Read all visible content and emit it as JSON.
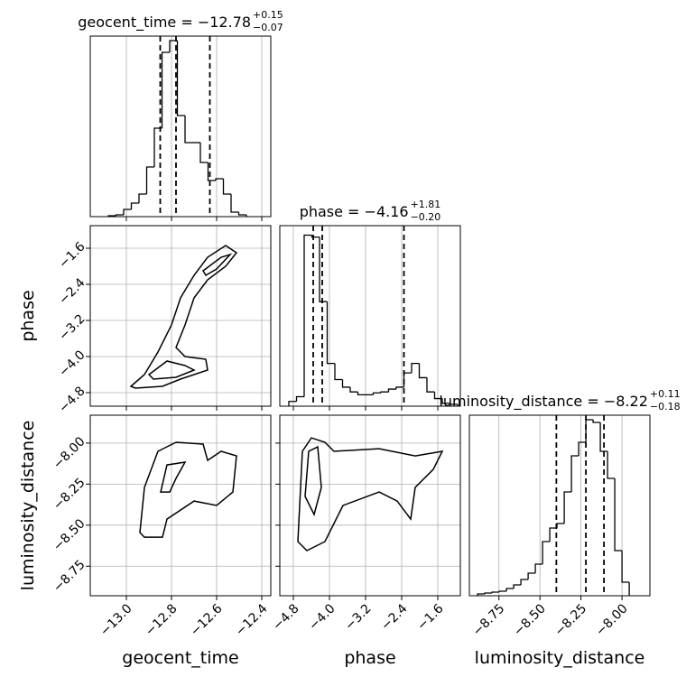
{
  "chart_data": [
    {
      "type": "histogram",
      "title": "geocent_time = −12.78",
      "title_sup": "+0.15",
      "title_sub": "−0.07",
      "bins": [
        -13.08,
        -13.046,
        -13.012,
        -12.978,
        -12.944,
        -12.91,
        -12.876,
        -12.842,
        -12.808,
        -12.774,
        -12.74,
        -12.706,
        -12.672,
        -12.638,
        -12.604,
        -12.57,
        -12.536,
        -12.502,
        -12.468
      ],
      "counts": [
        1,
        2,
        8,
        15,
        25,
        55,
        98,
        182,
        195,
        112,
        82,
        82,
        60,
        40,
        42,
        25,
        5,
        2
      ],
      "quantiles": [
        -12.85,
        -12.78,
        -12.63
      ],
      "xlim": [
        -13.16,
        -12.36
      ],
      "xticks": [
        -13.0,
        -12.8,
        -12.6,
        -12.4
      ],
      "ylim": [
        0,
        200
      ],
      "grid": true,
      "color": "#000000"
    },
    {
      "type": "histogram",
      "title": "phase = −4.16",
      "title_sup": "+1.81",
      "title_sub": "−0.20",
      "bins": [
        -4.9,
        -4.73,
        -4.56,
        -4.39,
        -4.22,
        -4.05,
        -3.88,
        -3.71,
        -3.54,
        -3.37,
        -3.2,
        -3.03,
        -2.86,
        -2.69,
        -2.52,
        -2.35,
        -2.18,
        -2.01,
        -1.84,
        -1.67,
        -1.5,
        -1.33,
        -1.16
      ],
      "counts": [
        5,
        10,
        180,
        178,
        110,
        45,
        28,
        20,
        15,
        12,
        12,
        14,
        15,
        18,
        20,
        35,
        45,
        30,
        15,
        8,
        3,
        2
      ],
      "quantiles": [
        -4.36,
        -4.16,
        -2.35
      ],
      "xlim": [
        -5.1,
        -1.1
      ],
      "xticks": [
        -4.8,
        -4.0,
        -3.2,
        -2.4,
        -1.6
      ],
      "ylim": [
        0,
        190
      ],
      "grid": true,
      "color": "#000000"
    },
    {
      "type": "histogram",
      "title": "luminosity_distance = −8.22",
      "title_sup": "+0.11",
      "title_sub": "−0.18",
      "bins": [
        -8.88,
        -8.836,
        -8.792,
        -8.748,
        -8.704,
        -8.66,
        -8.616,
        -8.572,
        -8.528,
        -8.484,
        -8.44,
        -8.396,
        -8.352,
        -8.308,
        -8.264,
        -8.22,
        -8.176,
        -8.132,
        -8.088,
        -8.044,
        -8.0,
        -7.956
      ],
      "counts": [
        2,
        3,
        4,
        5,
        8,
        12,
        18,
        25,
        35,
        60,
        75,
        80,
        115,
        155,
        170,
        195,
        192,
        160,
        130,
        50,
        15
      ],
      "quantiles": [
        -8.4,
        -8.22,
        -8.11
      ],
      "xlim": [
        -8.93,
        -7.83
      ],
      "xticks": [
        {
          "value": -8.75,
          "label": "−8.75"
        },
        {
          "value": -8.5,
          "label": "−8.50"
        },
        {
          "value": -8.25,
          "label": "−8.25"
        },
        {
          "value": -8.0,
          "label": "−8.00"
        }
      ],
      "xlabel": "luminosity_distance",
      "ylim": [
        0,
        200
      ],
      "grid": true,
      "color": "#000000"
    },
    {
      "type": "contour",
      "xlim": [
        -13.16,
        -12.36
      ],
      "ylim": [
        -5.1,
        -1.1
      ],
      "xticks": [
        -13.0,
        -12.8,
        -12.6,
        -12.4
      ],
      "yticks": [
        {
          "value": -4.8,
          "label": "−4.8"
        },
        {
          "value": -4.0,
          "label": "−4.0"
        },
        {
          "value": -3.2,
          "label": "−3.2"
        },
        {
          "value": -2.4,
          "label": "−2.4"
        },
        {
          "value": -1.6,
          "label": "−1.6"
        }
      ],
      "ylabel": "phase",
      "grid": true,
      "color": "#000000",
      "contours": [
        {
          "x": [
            -12.98,
            -12.92,
            -12.86,
            -12.8,
            -12.76,
            -12.7,
            -12.64,
            -12.56,
            -12.512,
            -12.56,
            -12.64,
            -12.7,
            -12.74,
            -12.78,
            -12.74,
            -12.648,
            -12.64,
            -12.76,
            -12.84,
            -12.96
          ],
          "y": [
            -4.66,
            -4.4,
            -3.9,
            -3.3,
            -2.7,
            -2.2,
            -1.8,
            -1.54,
            -1.7,
            -2.0,
            -2.3,
            -2.7,
            -3.3,
            -3.8,
            -4.0,
            -4.06,
            -4.3,
            -4.5,
            -4.66,
            -4.7
          ]
        },
        {
          "x": [
            -12.9,
            -12.82,
            -12.74,
            -12.7,
            -12.78,
            -12.88
          ],
          "y": [
            -4.4,
            -4.1,
            -4.2,
            -4.3,
            -4.46,
            -4.5
          ]
        },
        {
          "x": [
            -12.66,
            -12.58,
            -12.54,
            -12.6,
            -12.648
          ],
          "y": [
            -2.1,
            -1.8,
            -1.74,
            -2.06,
            -2.2
          ]
        }
      ]
    },
    {
      "type": "contour",
      "xlim": [
        -13.16,
        -12.36
      ],
      "ylim": [
        -8.93,
        -7.83
      ],
      "xticks": [
        {
          "value": -13.0,
          "label": "−13.0"
        },
        {
          "value": -12.8,
          "label": "−12.8"
        },
        {
          "value": -12.6,
          "label": "−12.6"
        },
        {
          "value": -12.4,
          "label": "−12.4"
        }
      ],
      "yticks": [
        {
          "value": -8.75,
          "label": "−8.75"
        },
        {
          "value": -8.5,
          "label": "−8.50"
        },
        {
          "value": -8.25,
          "label": "−8.25"
        },
        {
          "value": -8.0,
          "label": "−8.00"
        }
      ],
      "xlabel": "geocent_time",
      "ylabel": "luminosity_distance",
      "grid": true,
      "color": "#000000",
      "contours": [
        {
          "x": [
            -12.94,
            -12.92,
            -12.86,
            -12.78,
            -12.66,
            -12.64,
            -12.58,
            -12.512,
            -12.528,
            -12.6,
            -12.7,
            -12.82,
            -12.84,
            -12.92
          ],
          "y": [
            -8.545,
            -8.27,
            -8.05,
            -7.995,
            -8.006,
            -8.105,
            -8.05,
            -8.078,
            -8.298,
            -8.38,
            -8.353,
            -8.463,
            -8.573,
            -8.573
          ]
        },
        {
          "x": [
            -12.848,
            -12.82,
            -12.74,
            -12.78,
            -12.808
          ],
          "y": [
            -8.298,
            -8.133,
            -8.116,
            -8.215,
            -8.298
          ]
        }
      ]
    },
    {
      "type": "contour",
      "xlim": [
        -5.1,
        -1.1
      ],
      "ylim": [
        -8.93,
        -7.83
      ],
      "xticks": [
        {
          "value": -4.8,
          "label": "−4.8"
        },
        {
          "value": -4.0,
          "label": "−4.0"
        },
        {
          "value": -3.2,
          "label": "−3.2"
        },
        {
          "value": -2.4,
          "label": "−2.4"
        },
        {
          "value": -1.6,
          "label": "−1.6"
        }
      ],
      "yticks": [
        -8.75,
        -8.5,
        -8.25,
        -8.0
      ],
      "xlabel": "phase",
      "grid": true,
      "color": "#000000",
      "contours": [
        {
          "x": [
            -4.7,
            -4.6,
            -4.4,
            -4.1,
            -3.9,
            -2.9,
            -2.1,
            -1.5,
            -1.7,
            -2.1,
            -2.2,
            -2.5,
            -2.9,
            -3.7,
            -4.1,
            -4.5
          ],
          "y": [
            -8.6,
            -8.05,
            -7.968,
            -7.995,
            -8.05,
            -8.034,
            -8.078,
            -8.05,
            -8.16,
            -8.27,
            -8.463,
            -8.353,
            -8.298,
            -8.38,
            -8.6,
            -8.655
          ]
        },
        {
          "x": [
            -4.54,
            -4.46,
            -4.26,
            -4.18,
            -4.34
          ],
          "y": [
            -8.325,
            -8.05,
            -8.023,
            -8.27,
            -8.435
          ]
        }
      ]
    }
  ]
}
